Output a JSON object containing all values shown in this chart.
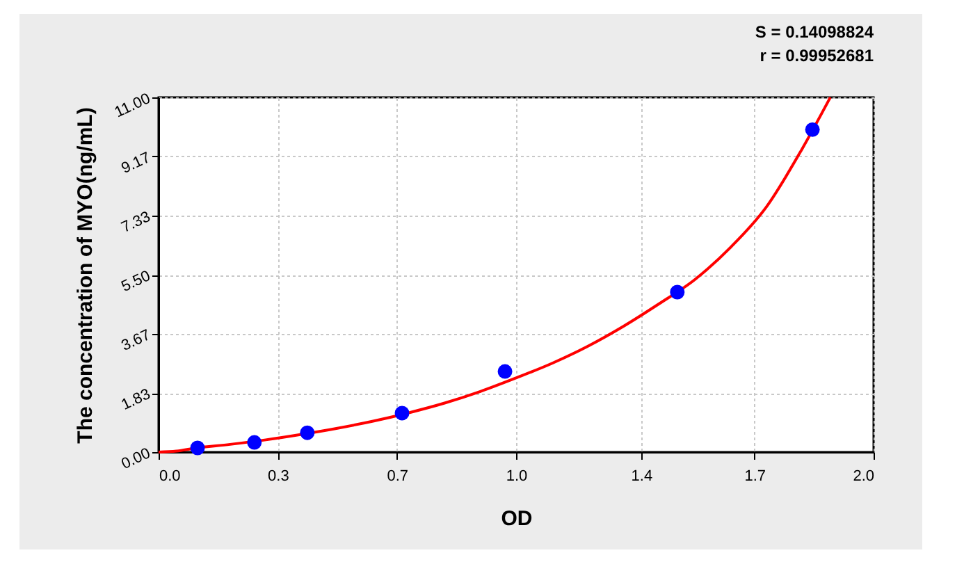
{
  "chart_data": {
    "type": "scatter",
    "xlabel": "OD",
    "ylabel": "The concentration of MYO(ng/mL)",
    "annotations": [
      "S = 0.14098824",
      "r = 0.99952681"
    ],
    "xlim": [
      0,
      2
    ],
    "ylim": [
      0,
      11
    ],
    "xticks": [
      {
        "value": 0,
        "label": "0.0"
      },
      {
        "value": 0.3333,
        "label": "0.3"
      },
      {
        "value": 0.6667,
        "label": "0.7"
      },
      {
        "value": 1,
        "label": "1.0"
      },
      {
        "value": 1.35,
        "label": "1.4"
      },
      {
        "value": 1.6667,
        "label": "1.7"
      },
      {
        "value": 2,
        "label": "2.0"
      }
    ],
    "yticks": [
      {
        "value": 0,
        "label": "0.00"
      },
      {
        "value": 1.8333,
        "label": "1.83"
      },
      {
        "value": 3.6667,
        "label": "3.67"
      },
      {
        "value": 5.5,
        "label": "5.50"
      },
      {
        "value": 7.3333,
        "label": "7.33"
      },
      {
        "value": 9.1667,
        "label": "9.17"
      },
      {
        "value": 11,
        "label": "11.00"
      }
    ],
    "grid": true,
    "marker": "circle",
    "series": [
      {
        "type": "line",
        "marker": "none",
        "color": "#ff0000",
        "x": [
          0,
          0.05,
          0.1,
          0.2,
          0.3,
          0.4,
          0.5,
          0.6,
          0.7,
          0.8,
          0.9,
          1.0,
          1.1,
          1.2,
          1.3,
          1.4,
          1.5,
          1.6,
          1.7,
          1.8,
          1.879
        ],
        "values": [
          0,
          0.03,
          0.12,
          0.24,
          0.38,
          0.55,
          0.74,
          0.96,
          1.22,
          1.52,
          1.88,
          2.3,
          2.75,
          3.28,
          3.9,
          4.6,
          5.35,
          6.35,
          7.6,
          9.4,
          11.0
        ]
      },
      {
        "color": "#0000ff",
        "x": [
          0.109,
          0.268,
          0.416,
          0.681,
          0.969,
          1.451,
          1.829
        ],
        "values": [
          0.13,
          0.3,
          0.6,
          1.21,
          2.5,
          4.96,
          10.0
        ]
      }
    ]
  }
}
